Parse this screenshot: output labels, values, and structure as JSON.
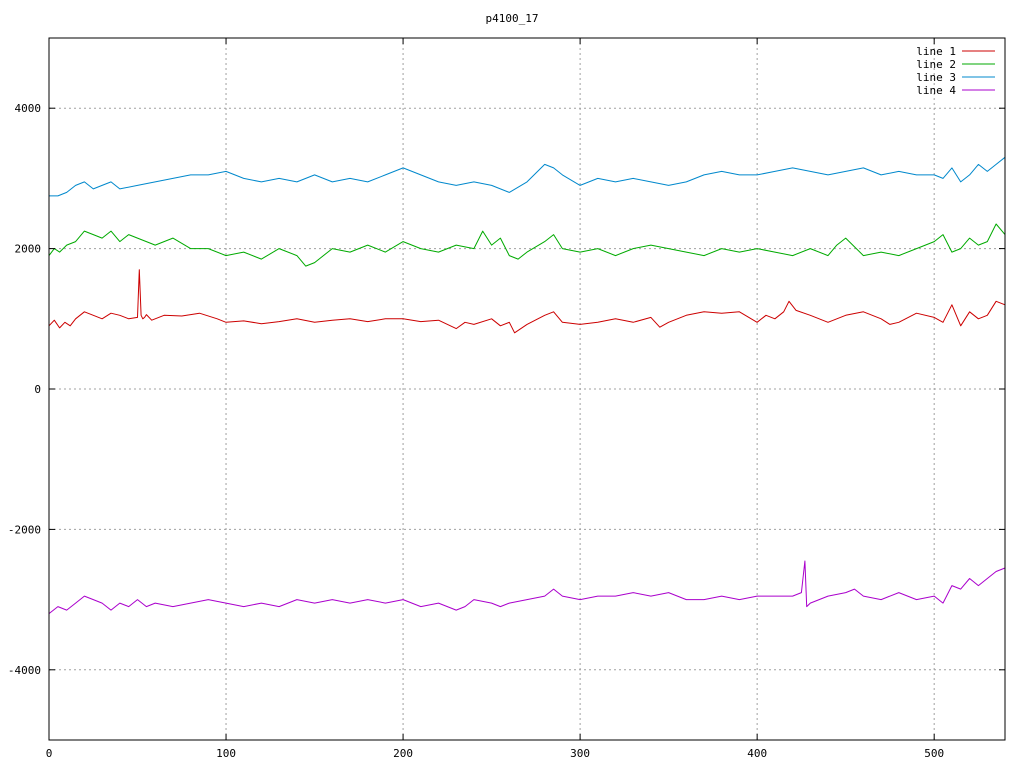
{
  "chart_data": {
    "type": "line",
    "title": "p4100_17",
    "xlabel": "",
    "ylabel": "",
    "xlim": [
      0,
      540
    ],
    "ylim": [
      -5000,
      5000
    ],
    "xticks": [
      0,
      100,
      200,
      300,
      400,
      500
    ],
    "yticks": [
      -4000,
      -2000,
      0,
      2000,
      4000
    ],
    "grid": true,
    "legend_position": "top-right",
    "series": [
      {
        "name": "line 1",
        "color": "#cc0000",
        "x": [
          0,
          3,
          6,
          9,
          12,
          15,
          20,
          25,
          30,
          35,
          40,
          45,
          50,
          51,
          52,
          53,
          54,
          55,
          58,
          65,
          75,
          85,
          95,
          100,
          110,
          120,
          130,
          140,
          150,
          160,
          170,
          180,
          190,
          200,
          210,
          220,
          230,
          235,
          240,
          250,
          255,
          260,
          263,
          270,
          280,
          285,
          290,
          300,
          310,
          320,
          330,
          340,
          345,
          350,
          360,
          370,
          380,
          390,
          400,
          405,
          410,
          415,
          418,
          422,
          430,
          440,
          450,
          460,
          470,
          475,
          480,
          490,
          500,
          505,
          510,
          515,
          520,
          525,
          530,
          535,
          540
        ],
        "y": [
          900,
          980,
          870,
          950,
          900,
          1000,
          1100,
          1050,
          1000,
          1080,
          1050,
          1000,
          1020,
          1700,
          1050,
          1000,
          1020,
          1060,
          980,
          1050,
          1040,
          1080,
          1000,
          950,
          970,
          930,
          960,
          1000,
          950,
          980,
          1000,
          960,
          1000,
          1000,
          960,
          980,
          860,
          950,
          920,
          1000,
          900,
          950,
          800,
          920,
          1050,
          1100,
          950,
          920,
          950,
          1000,
          950,
          1020,
          880,
          950,
          1050,
          1100,
          1080,
          1100,
          950,
          1050,
          1000,
          1100,
          1250,
          1120,
          1050,
          950,
          1050,
          1100,
          1000,
          920,
          950,
          1080,
          1020,
          950,
          1200,
          900,
          1100,
          1000,
          1050,
          1250,
          1200
        ]
      },
      {
        "name": "line 2",
        "color": "#00aa00",
        "x": [
          0,
          3,
          6,
          10,
          15,
          20,
          25,
          30,
          35,
          40,
          45,
          50,
          55,
          60,
          70,
          80,
          90,
          100,
          110,
          120,
          130,
          140,
          145,
          150,
          160,
          170,
          180,
          190,
          200,
          210,
          220,
          230,
          240,
          245,
          250,
          255,
          260,
          265,
          270,
          280,
          285,
          290,
          300,
          310,
          320,
          330,
          340,
          350,
          360,
          370,
          380,
          390,
          400,
          410,
          420,
          430,
          440,
          445,
          450,
          460,
          470,
          480,
          490,
          500,
          505,
          510,
          515,
          520,
          525,
          530,
          535,
          540
        ],
        "y": [
          1900,
          2000,
          1950,
          2050,
          2100,
          2250,
          2200,
          2150,
          2250,
          2100,
          2200,
          2150,
          2100,
          2050,
          2150,
          2000,
          2000,
          1900,
          1950,
          1850,
          2000,
          1900,
          1750,
          1800,
          2000,
          1950,
          2050,
          1950,
          2100,
          2000,
          1950,
          2050,
          2000,
          2250,
          2050,
          2150,
          1900,
          1850,
          1950,
          2100,
          2200,
          2000,
          1950,
          2000,
          1900,
          2000,
          2050,
          2000,
          1950,
          1900,
          2000,
          1950,
          2000,
          1950,
          1900,
          2000,
          1900,
          2050,
          2150,
          1900,
          1950,
          1900,
          2000,
          2100,
          2200,
          1950,
          2000,
          2150,
          2050,
          2100,
          2350,
          2200
        ]
      },
      {
        "name": "line 3",
        "color": "#0088cc",
        "x": [
          0,
          5,
          10,
          15,
          20,
          25,
          30,
          35,
          40,
          50,
          60,
          70,
          80,
          90,
          100,
          110,
          120,
          130,
          140,
          150,
          160,
          170,
          180,
          190,
          200,
          210,
          220,
          230,
          240,
          250,
          260,
          270,
          280,
          285,
          290,
          300,
          310,
          320,
          330,
          340,
          350,
          360,
          370,
          380,
          390,
          400,
          410,
          420,
          430,
          440,
          450,
          460,
          470,
          480,
          490,
          500,
          505,
          510,
          515,
          520,
          525,
          530,
          535,
          540
        ],
        "y": [
          2750,
          2750,
          2800,
          2900,
          2950,
          2850,
          2900,
          2950,
          2850,
          2900,
          2950,
          3000,
          3050,
          3050,
          3100,
          3000,
          2950,
          3000,
          2950,
          3050,
          2950,
          3000,
          2950,
          3050,
          3150,
          3050,
          2950,
          2900,
          2950,
          2900,
          2800,
          2950,
          3200,
          3150,
          3050,
          2900,
          3000,
          2950,
          3000,
          2950,
          2900,
          2950,
          3050,
          3100,
          3050,
          3050,
          3100,
          3150,
          3100,
          3050,
          3100,
          3150,
          3050,
          3100,
          3050,
          3050,
          3000,
          3150,
          2950,
          3050,
          3200,
          3100,
          3200,
          3300
        ]
      },
      {
        "name": "line 4",
        "color": "#aa00cc",
        "x": [
          0,
          5,
          10,
          15,
          20,
          25,
          30,
          35,
          40,
          45,
          50,
          55,
          60,
          70,
          80,
          90,
          100,
          110,
          120,
          130,
          140,
          150,
          160,
          170,
          180,
          190,
          200,
          210,
          220,
          230,
          235,
          240,
          250,
          255,
          260,
          270,
          280,
          285,
          290,
          300,
          310,
          320,
          330,
          340,
          350,
          360,
          370,
          380,
          390,
          400,
          410,
          420,
          425,
          427,
          428,
          430,
          440,
          450,
          455,
          460,
          470,
          480,
          490,
          500,
          505,
          510,
          515,
          520,
          525,
          530,
          535,
          540
        ],
        "y": [
          -3200,
          -3100,
          -3150,
          -3050,
          -2950,
          -3000,
          -3050,
          -3150,
          -3050,
          -3100,
          -3000,
          -3100,
          -3050,
          -3100,
          -3050,
          -3000,
          -3050,
          -3100,
          -3050,
          -3100,
          -3000,
          -3050,
          -3000,
          -3050,
          -3000,
          -3050,
          -3000,
          -3100,
          -3050,
          -3150,
          -3100,
          -3000,
          -3050,
          -3100,
          -3050,
          -3000,
          -2950,
          -2850,
          -2950,
          -3000,
          -2950,
          -2950,
          -2900,
          -2950,
          -2900,
          -3000,
          -3000,
          -2950,
          -3000,
          -2950,
          -2950,
          -2950,
          -2900,
          -2450,
          -3100,
          -3050,
          -2950,
          -2900,
          -2850,
          -2950,
          -3000,
          -2900,
          -3000,
          -2950,
          -3050,
          -2800,
          -2850,
          -2700,
          -2800,
          -2700,
          -2600,
          -2550
        ]
      }
    ]
  }
}
